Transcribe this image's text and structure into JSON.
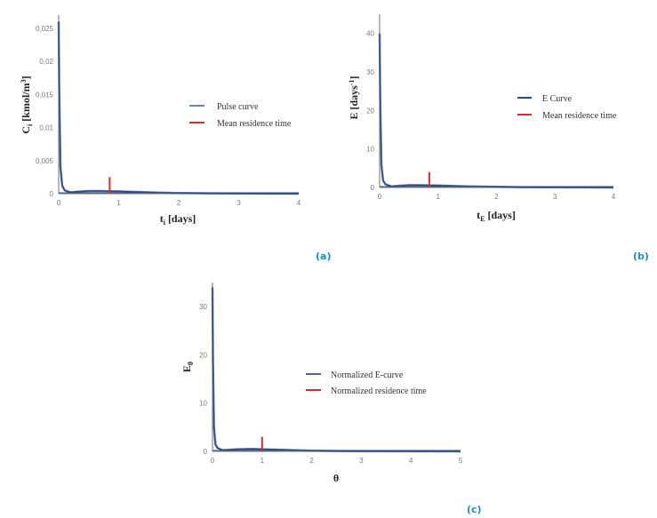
{
  "colors": {
    "curve": "#2f4a7d",
    "curve_light": "#6f86b4",
    "mean_line": "#d62c2c",
    "axis": "#8a8a8a",
    "panel_label": "#1a8fc4"
  },
  "chart_data": [
    {
      "type": "line",
      "panel": "(a)",
      "title": "",
      "xlabel": "t_i [days]",
      "xlabel_main": "t",
      "xlabel_sub": "i",
      "xlabel_rest": " [days]",
      "ylabel": "C_i [kmol/m^3]",
      "ylabel_main": "C",
      "ylabel_sub": "i",
      "ylabel_rest": " [kmol/m",
      "ylabel_sup": "3",
      "ylabel_end": "]",
      "xlim": [
        0,
        4
      ],
      "ylim": [
        0,
        0.027
      ],
      "xticks": [
        "0",
        "1",
        "2",
        "3",
        "4"
      ],
      "yticks": [
        "0",
        "0,005",
        "0,01",
        "0,015",
        "0,02",
        "0,025"
      ],
      "grid": false,
      "legend_position": "right-center",
      "series": [
        {
          "name": "Pulse curve",
          "x": [
            0,
            0.01,
            0.03,
            0.06,
            0.1,
            0.2,
            0.3,
            0.5,
            0.7,
            1.0,
            1.5,
            2.0,
            2.5,
            3.0,
            3.5,
            4.0
          ],
          "y": [
            0.026,
            0.015,
            0.004,
            0.0012,
            0.0005,
            0.0002,
            0.0003,
            0.0004,
            0.0004,
            0.00035,
            0.0002,
            0.0001,
            5e-05,
            3e-05,
            1e-05,
            0.0
          ]
        },
        {
          "name": "Mean residence time",
          "x": [
            0.85,
            0.85
          ],
          "y": [
            0,
            0.0025
          ]
        }
      ]
    },
    {
      "type": "line",
      "panel": "(b)",
      "title": "",
      "xlabel": "t_E [days]",
      "xlabel_main": "t",
      "xlabel_sub": "E",
      "xlabel_rest": " [days]",
      "ylabel": "E [days^-1]",
      "ylabel_main": "E [days",
      "ylabel_sup": "-1",
      "ylabel_end": "]",
      "xlim": [
        0,
        4
      ],
      "ylim": [
        0,
        45
      ],
      "xticks": [
        "0",
        "1",
        "2",
        "3",
        "4"
      ],
      "yticks": [
        "0",
        "10",
        "20",
        "30",
        "40"
      ],
      "grid": false,
      "legend_position": "right-center",
      "series": [
        {
          "name": "E Curve",
          "x": [
            0,
            0.01,
            0.03,
            0.06,
            0.1,
            0.2,
            0.3,
            0.5,
            0.7,
            1.0,
            1.5,
            2.0,
            2.5,
            3.0,
            3.5,
            4.0
          ],
          "y": [
            40,
            22,
            6,
            1.8,
            0.8,
            0.3,
            0.4,
            0.6,
            0.6,
            0.5,
            0.3,
            0.15,
            0.08,
            0.04,
            0.02,
            0.0
          ]
        },
        {
          "name": "Mean residence time",
          "x": [
            0.85,
            0.85
          ],
          "y": [
            0,
            4
          ]
        }
      ]
    },
    {
      "type": "line",
      "panel": "(c)",
      "title": "",
      "xlabel": "θ",
      "ylabel": "E_θ",
      "ylabel_main": "E",
      "ylabel_sub": "θ",
      "xlim": [
        0,
        5
      ],
      "ylim": [
        0,
        35
      ],
      "xticks": [
        "0",
        "1",
        "2",
        "3",
        "4",
        "5"
      ],
      "yticks": [
        "0",
        "10",
        "20",
        "30"
      ],
      "grid": false,
      "legend_position": "right-center",
      "series": [
        {
          "name": "Normalized E-curve",
          "x": [
            0,
            0.01,
            0.03,
            0.06,
            0.1,
            0.2,
            0.3,
            0.5,
            0.8,
            1.0,
            1.5,
            2.0,
            2.5,
            3.0,
            4.0,
            5.0
          ],
          "y": [
            34,
            18,
            5,
            1.5,
            0.7,
            0.25,
            0.3,
            0.45,
            0.5,
            0.45,
            0.3,
            0.15,
            0.08,
            0.04,
            0.01,
            0.0
          ]
        },
        {
          "name": "Normalized residence time",
          "x": [
            1,
            1
          ],
          "y": [
            0,
            3
          ]
        }
      ]
    }
  ]
}
